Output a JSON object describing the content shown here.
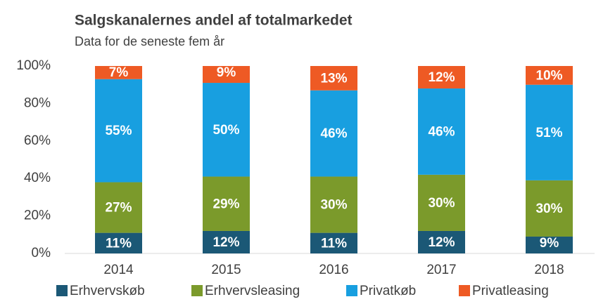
{
  "chart_data": {
    "type": "stacked_bar",
    "title": "Salgskanalernes andel af totalmarkedet",
    "subtitle": "Data for de seneste fem år",
    "categories": [
      "2014",
      "2015",
      "2016",
      "2017",
      "2018"
    ],
    "series": [
      {
        "name": "Erhvervskøb",
        "color": "#1b5876",
        "values": [
          11,
          12,
          11,
          12,
          9
        ],
        "value_labels": [
          "11%",
          "12%",
          "11%",
          "12%",
          "9%"
        ]
      },
      {
        "name": "Erhvervsleasing",
        "color": "#7b9a2b",
        "values": [
          27,
          29,
          30,
          30,
          30
        ],
        "value_labels": [
          "27%",
          "29%",
          "30%",
          "30%",
          "30%"
        ]
      },
      {
        "name": "Privatkøb",
        "color": "#189fe0",
        "values": [
          55,
          50,
          46,
          46,
          51
        ],
        "value_labels": [
          "55%",
          "50%",
          "46%",
          "46%",
          "51%"
        ]
      },
      {
        "name": "Privatleasing",
        "color": "#ee5a24",
        "values": [
          7,
          9,
          13,
          12,
          10
        ],
        "value_labels": [
          "7%",
          "9%",
          "13%",
          "12%",
          "10%"
        ]
      }
    ],
    "ylim": [
      0,
      100
    ],
    "yticks": [
      {
        "value": 0,
        "label": "0%"
      },
      {
        "value": 20,
        "label": "20%"
      },
      {
        "value": 40,
        "label": "40%"
      },
      {
        "value": 60,
        "label": "60%"
      },
      {
        "value": 80,
        "label": "80%"
      },
      {
        "value": 100,
        "label": "100%"
      }
    ],
    "grid": false,
    "legend": "bottom"
  }
}
